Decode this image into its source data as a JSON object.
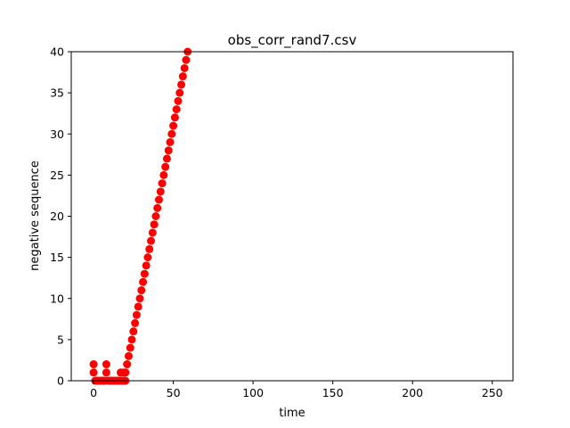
{
  "chart_data": {
    "type": "scatter",
    "title": "obs_corr_rand7.csv",
    "xlabel": "time",
    "ylabel": "negative sequence",
    "xlim": [
      -14,
      263
    ],
    "ylim": [
      0,
      40
    ],
    "xticks": [
      0,
      50,
      100,
      150,
      200,
      250
    ],
    "yticks": [
      0,
      5,
      10,
      15,
      20,
      25,
      30,
      35,
      40
    ],
    "grid": false,
    "marker_color": "#ff0000",
    "series": [
      {
        "x": [
          0,
          0,
          1,
          2,
          3,
          4,
          5,
          6,
          7,
          8,
          8,
          9,
          10,
          11,
          12,
          13,
          14,
          15,
          16,
          17,
          17,
          18,
          19,
          19,
          20,
          20,
          21,
          22,
          23,
          24,
          25,
          26,
          27,
          28,
          29,
          30,
          31,
          32,
          33,
          34,
          35,
          36,
          37,
          38,
          39,
          40,
          41,
          42,
          43,
          44,
          45,
          46,
          47,
          48,
          49,
          50,
          51,
          52,
          53,
          54,
          55,
          56,
          57,
          58,
          59
        ],
        "y": [
          1,
          2,
          0,
          0,
          0,
          0,
          0,
          0,
          0,
          1,
          2,
          0,
          0,
          0,
          0,
          0,
          0,
          0,
          0,
          1,
          0,
          0,
          1,
          0,
          0,
          1,
          2,
          3,
          4,
          5,
          6,
          7,
          8,
          9,
          10,
          11,
          12,
          13,
          14,
          15,
          16,
          17,
          18,
          19,
          20,
          21,
          22,
          23,
          24,
          25,
          26,
          27,
          28,
          29,
          30,
          31,
          32,
          33,
          34,
          35,
          36,
          37,
          38,
          39,
          40
        ]
      }
    ]
  }
}
